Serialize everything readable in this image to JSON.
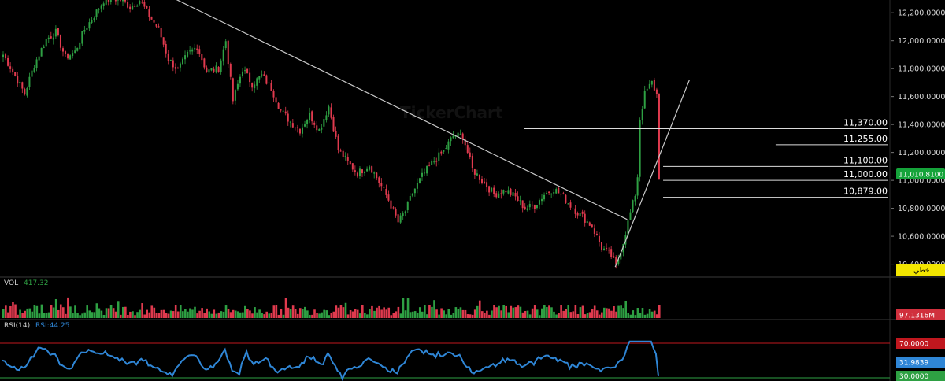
{
  "colors": {
    "background": "#000000",
    "bullish": "#2ea043",
    "bearish": "#e03a4e",
    "rsi_line": "#2f86d6",
    "rsi_upper": "#c0171e",
    "rsi_lower": "#2ea043",
    "trendline": "#c8c8c8",
    "last_price_badge": "#15a33a",
    "volume_badge": "#d0303d",
    "rsi_value_badge": "#2f86d6",
    "mode_badge": "#f2e600"
  },
  "watermark": "TickerChart",
  "mode_label": "خطي",
  "price_panel": {
    "last_price_label": "11,010.8100"
  },
  "volume_panel": {
    "label": "VOL",
    "value": "417.32",
    "badge": "97.1316M"
  },
  "rsi_panel": {
    "label": "RSI(14)",
    "value_label": "RSI:44.25",
    "upper_badge": "70.0000",
    "current_badge": "31.9839",
    "lower_badge": "30.0000"
  },
  "chart_data": [
    {
      "type": "candlestick",
      "title": "",
      "ylim": [
        10330,
        12280
      ],
      "y_ticks": [
        "12,200.0000",
        "12,000.0000",
        "11,800.0000",
        "11,600.0000",
        "11,400.0000",
        "11,200.0000",
        "11,000.0000",
        "10,800.0000",
        "10,600.0000",
        "10,400.0000"
      ],
      "y_tick_values": [
        12200,
        12000,
        11800,
        11600,
        11400,
        11200,
        11000,
        10800,
        10600,
        10400
      ],
      "bars_count": 275,
      "close_path": [
        [
          0,
          11900
        ],
        [
          4,
          11780
        ],
        [
          9,
          11620
        ],
        [
          13,
          11830
        ],
        [
          18,
          12010
        ],
        [
          22,
          12060
        ],
        [
          26,
          11880
        ],
        [
          30,
          11920
        ],
        [
          34,
          12080
        ],
        [
          38,
          12180
        ],
        [
          42,
          12290
        ],
        [
          46,
          12300
        ],
        [
          50,
          12290
        ],
        [
          53,
          12240
        ],
        [
          57,
          12290
        ],
        [
          61,
          12180
        ],
        [
          65,
          12080
        ],
        [
          69,
          11870
        ],
        [
          73,
          11790
        ],
        [
          77,
          11900
        ],
        [
          81,
          11960
        ],
        [
          85,
          11780
        ],
        [
          90,
          11800
        ],
        [
          93,
          12000
        ],
        [
          96,
          11570
        ],
        [
          100,
          11800
        ],
        [
          104,
          11690
        ],
        [
          108,
          11750
        ],
        [
          112,
          11660
        ],
        [
          116,
          11500
        ],
        [
          120,
          11420
        ],
        [
          124,
          11360
        ],
        [
          128,
          11470
        ],
        [
          132,
          11360
        ],
        [
          136,
          11530
        ],
        [
          140,
          11220
        ],
        [
          144,
          11130
        ],
        [
          148,
          11050
        ],
        [
          153,
          11110
        ],
        [
          157,
          10990
        ],
        [
          161,
          10860
        ],
        [
          165,
          10700
        ],
        [
          168,
          10780
        ],
        [
          171,
          10910
        ],
        [
          175,
          11030
        ],
        [
          179,
          11120
        ],
        [
          184,
          11210
        ],
        [
          188,
          11320
        ],
        [
          192,
          11320
        ],
        [
          196,
          11080
        ],
        [
          200,
          11000
        ],
        [
          205,
          10900
        ],
        [
          210,
          10930
        ],
        [
          214,
          10880
        ],
        [
          218,
          10800
        ],
        [
          222,
          10820
        ],
        [
          226,
          10900
        ],
        [
          230,
          10940
        ],
        [
          234,
          10880
        ],
        [
          238,
          10800
        ],
        [
          242,
          10740
        ],
        [
          246,
          10670
        ],
        [
          250,
          10520
        ],
        [
          254,
          10460
        ],
        [
          256,
          10380
        ],
        [
          259,
          10560
        ],
        [
          261,
          10700
        ],
        [
          264,
          10900
        ],
        [
          265,
          11030
        ],
        [
          266,
          11440
        ],
        [
          268,
          11620
        ],
        [
          271,
          11700
        ],
        [
          274,
          11570
        ],
        [
          276,
          11600
        ],
        [
          280,
          11680
        ],
        [
          284,
          11700
        ],
        [
          286,
          11720
        ],
        [
          290,
          11780
        ],
        [
          294,
          11660
        ],
        [
          298,
          11700
        ],
        [
          302,
          11720
        ],
        [
          306,
          11780
        ],
        [
          309,
          11500
        ],
        [
          313,
          11290
        ],
        [
          318,
          11220
        ],
        [
          323,
          11210
        ],
        [
          327,
          11050
        ],
        [
          331,
          11005
        ],
        [
          336,
          11011
        ]
      ],
      "volume_max": 150,
      "rsi": {
        "range": [
          30,
          70
        ],
        "upper_level": 70,
        "lower_level": 30,
        "current": 31.9839
      },
      "horizontal_levels": [
        {
          "label": "11,370.00",
          "value": 11370
        },
        {
          "label": "11,255.00",
          "value": 11255
        },
        {
          "label": "11,100.00",
          "value": 11100
        },
        {
          "label": "11,000.00",
          "value": 11000
        },
        {
          "label": "10,879.00",
          "value": 10879
        }
      ],
      "trendlines": [
        {
          "from": [
            72,
            12300
          ],
          "to": [
            261,
            10720
          ]
        },
        {
          "from": [
            256,
            10380
          ],
          "to": [
            287,
            11720
          ]
        }
      ]
    }
  ]
}
